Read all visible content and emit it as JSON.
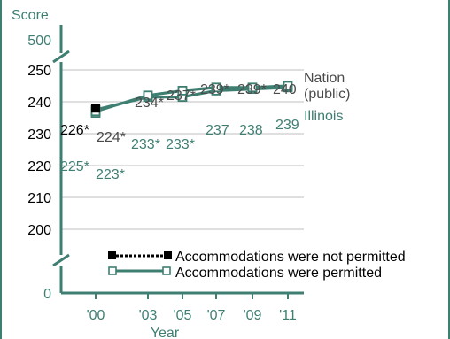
{
  "colors": {
    "nation": "#000000",
    "illinois": "#3e7f72",
    "axis": "#3e7f72",
    "grid": "#bfbfbf",
    "text": "#4a4a4a"
  },
  "chart_data": {
    "type": "line",
    "ylabel": "Score",
    "xlabel": "Year",
    "yticks": [
      "500",
      "250",
      "240",
      "230",
      "220",
      "210",
      "200",
      "0"
    ],
    "ylim": [
      195,
      250
    ],
    "axis_breaks": [
      "between 250 and 500",
      "between 0 and 200"
    ],
    "grid": true,
    "categories": [
      "'00",
      "'03",
      "'05",
      "'07",
      "'09",
      "'11"
    ],
    "series": [
      {
        "name": "Nation (public)",
        "label_line1": "Nation",
        "label_line2": "(public)",
        "color": "#000000",
        "segments": [
          {
            "x": [
              "'00"
            ],
            "values": [
              226
            ],
            "labels": [
              "226*"
            ],
            "marker": "filled-square",
            "style": "dotted"
          },
          {
            "x": [
              "'00",
              "'03",
              "'05",
              "'07",
              "'09",
              "'11"
            ],
            "values": [
              224,
              234,
              237,
              239,
              239,
              240
            ],
            "labels": [
              "224*",
              "234*",
              "237*",
              "239*",
              "239*",
              "240"
            ],
            "marker": "open-square",
            "style": "solid"
          }
        ]
      },
      {
        "name": "Illinois",
        "color": "#3e7f72",
        "segments": [
          {
            "x": [
              "'00",
              "'03",
              "'05",
              "'07",
              "'09",
              "'11"
            ],
            "values": [
              225,
              233,
              233,
              237,
              238,
              239
            ],
            "labels": [
              "225*",
              "233*",
              "233*",
              "237",
              "238",
              "239"
            ],
            "marker": "open-square",
            "style": "solid"
          }
        ]
      },
      {
        "name": "Illinois (accommodations not permitted)",
        "color": "#3e7f72",
        "segments": [
          {
            "x": [
              "'00"
            ],
            "values": [
              223
            ],
            "labels": [
              "223*"
            ],
            "marker": "open-square",
            "style": "solid"
          }
        ]
      }
    ],
    "legend": {
      "placement": "bottom",
      "items": [
        {
          "label": "Accommodations were not permitted",
          "style": "dotted",
          "marker": "filled-square"
        },
        {
          "label": "Accommodations were permitted",
          "style": "solid",
          "marker": "open-square"
        }
      ]
    }
  }
}
